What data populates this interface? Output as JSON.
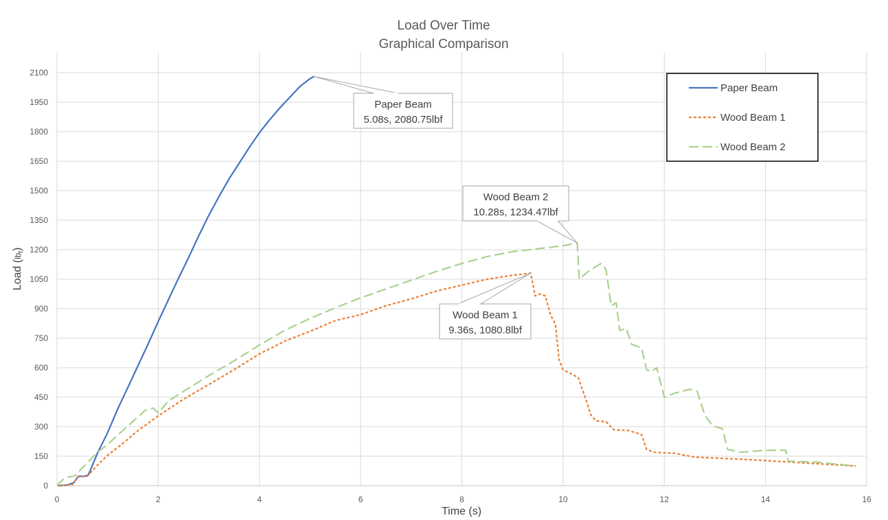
{
  "chart_data": {
    "type": "line",
    "title": "Load Over Time",
    "subtitle": "Graphical Comparison",
    "xlabel": "Time (s)",
    "ylabel_main": "Load (",
    "ylabel_unit": "lb",
    "ylabel_sub": "f",
    "ylabel_close": ")",
    "xlim": [
      0,
      16
    ],
    "ylim": [
      0,
      2100
    ],
    "xticks": [
      0,
      2,
      4,
      6,
      8,
      10,
      12,
      14,
      16
    ],
    "yticks": [
      0,
      150,
      300,
      450,
      600,
      750,
      900,
      1050,
      1200,
      1350,
      1500,
      1650,
      1800,
      1950,
      2100
    ],
    "grid": true,
    "legend_position": "top-right",
    "series": [
      {
        "name": "Paper Beam",
        "color": "#4472C4",
        "dash": "solid",
        "points": [
          [
            0,
            0
          ],
          [
            0.2,
            3
          ],
          [
            0.33,
            15
          ],
          [
            0.42,
            48
          ],
          [
            0.55,
            48
          ],
          [
            0.62,
            55
          ],
          [
            0.8,
            165
          ],
          [
            1.0,
            270
          ],
          [
            1.2,
            390
          ],
          [
            1.4,
            500
          ],
          [
            1.6,
            610
          ],
          [
            1.8,
            720
          ],
          [
            2.0,
            835
          ],
          [
            2.2,
            945
          ],
          [
            2.4,
            1055
          ],
          [
            2.6,
            1160
          ],
          [
            2.8,
            1270
          ],
          [
            3.0,
            1375
          ],
          [
            3.2,
            1470
          ],
          [
            3.4,
            1560
          ],
          [
            3.6,
            1640
          ],
          [
            3.8,
            1720
          ],
          [
            4.0,
            1795
          ],
          [
            4.2,
            1860
          ],
          [
            4.4,
            1920
          ],
          [
            4.6,
            1975
          ],
          [
            4.8,
            2030
          ],
          [
            5.0,
            2070
          ],
          [
            5.08,
            2081
          ]
        ]
      },
      {
        "name": "Wood Beam 1",
        "color": "#ED7D31",
        "dash": "dotted",
        "points": [
          [
            0,
            0
          ],
          [
            0.3,
            5
          ],
          [
            0.42,
            45
          ],
          [
            0.6,
            48
          ],
          [
            0.8,
            105
          ],
          [
            1.0,
            155
          ],
          [
            1.3,
            215
          ],
          [
            1.6,
            280
          ],
          [
            2.0,
            355
          ],
          [
            2.5,
            440
          ],
          [
            3.0,
            515
          ],
          [
            3.5,
            590
          ],
          [
            4.0,
            670
          ],
          [
            4.5,
            735
          ],
          [
            5.0,
            785
          ],
          [
            5.5,
            840
          ],
          [
            6.0,
            870
          ],
          [
            6.5,
            915
          ],
          [
            7.0,
            950
          ],
          [
            7.5,
            990
          ],
          [
            8.0,
            1020
          ],
          [
            8.5,
            1050
          ],
          [
            9.0,
            1070
          ],
          [
            9.36,
            1081
          ],
          [
            9.45,
            965
          ],
          [
            9.55,
            975
          ],
          [
            9.65,
            965
          ],
          [
            9.75,
            870
          ],
          [
            9.85,
            820
          ],
          [
            9.92,
            640
          ],
          [
            10.0,
            590
          ],
          [
            10.15,
            570
          ],
          [
            10.3,
            550
          ],
          [
            10.38,
            490
          ],
          [
            10.45,
            440
          ],
          [
            10.55,
            360
          ],
          [
            10.65,
            330
          ],
          [
            10.85,
            325
          ],
          [
            11.0,
            285
          ],
          [
            11.3,
            280
          ],
          [
            11.55,
            260
          ],
          [
            11.65,
            185
          ],
          [
            11.8,
            170
          ],
          [
            12.2,
            165
          ],
          [
            12.6,
            145
          ],
          [
            13.5,
            135
          ],
          [
            14.5,
            120
          ],
          [
            15.0,
            112
          ],
          [
            15.79,
            100
          ]
        ]
      },
      {
        "name": "Wood Beam 2",
        "color": "#A9D18E",
        "dash": "dashed",
        "points": [
          [
            0,
            0
          ],
          [
            0.15,
            40
          ],
          [
            0.35,
            50
          ],
          [
            0.5,
            90
          ],
          [
            0.8,
            170
          ],
          [
            1.0,
            210
          ],
          [
            1.3,
            280
          ],
          [
            1.6,
            350
          ],
          [
            1.75,
            385
          ],
          [
            1.9,
            395
          ],
          [
            2.0,
            370
          ],
          [
            2.2,
            430
          ],
          [
            2.5,
            480
          ],
          [
            3.0,
            560
          ],
          [
            3.5,
            635
          ],
          [
            4.0,
            715
          ],
          [
            4.5,
            790
          ],
          [
            5.0,
            850
          ],
          [
            5.5,
            905
          ],
          [
            6.0,
            955
          ],
          [
            6.5,
            1000
          ],
          [
            7.0,
            1045
          ],
          [
            7.5,
            1090
          ],
          [
            8.0,
            1130
          ],
          [
            8.5,
            1165
          ],
          [
            9.0,
            1190
          ],
          [
            9.5,
            1205
          ],
          [
            10.0,
            1220
          ],
          [
            10.28,
            1234
          ],
          [
            10.32,
            1050
          ],
          [
            10.5,
            1090
          ],
          [
            10.75,
            1130
          ],
          [
            10.85,
            1100
          ],
          [
            10.95,
            915
          ],
          [
            11.05,
            930
          ],
          [
            11.12,
            790
          ],
          [
            11.25,
            800
          ],
          [
            11.35,
            720
          ],
          [
            11.55,
            700
          ],
          [
            11.65,
            590
          ],
          [
            11.75,
            580
          ],
          [
            11.85,
            600
          ],
          [
            12.0,
            450
          ],
          [
            12.2,
            470
          ],
          [
            12.5,
            490
          ],
          [
            12.65,
            480
          ],
          [
            12.8,
            360
          ],
          [
            12.95,
            305
          ],
          [
            13.15,
            290
          ],
          [
            13.25,
            185
          ],
          [
            13.5,
            170
          ],
          [
            14.0,
            180
          ],
          [
            14.4,
            180
          ],
          [
            14.45,
            125
          ],
          [
            15.0,
            120
          ],
          [
            15.79,
            100
          ]
        ]
      }
    ],
    "annotations": [
      {
        "series": "Paper Beam",
        "x": 5.08,
        "y": 2080.75,
        "label_line1": "Paper Beam",
        "label_line2": "5.08s, 2080.75lbf"
      },
      {
        "series": "Wood Beam 2",
        "x": 10.28,
        "y": 1234.47,
        "label_line1": "Wood Beam 2",
        "label_line2": "10.28s, 1234.47lbf"
      },
      {
        "series": "Wood Beam 1",
        "x": 9.36,
        "y": 1080.8,
        "label_line1": "Wood Beam 1",
        "label_line2": "9.36s, 1080.8lbf"
      }
    ]
  }
}
